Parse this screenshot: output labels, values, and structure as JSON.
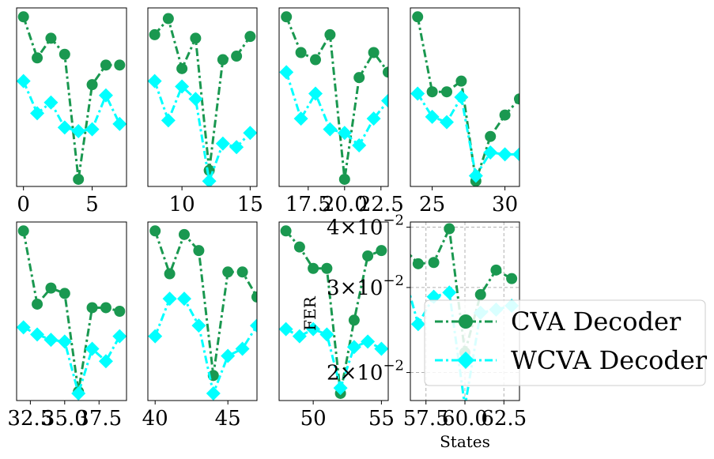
{
  "colors": {
    "cva": "#1a9850",
    "wcva": "#00ffff",
    "grid": "#b0b0b0"
  },
  "legend": {
    "placement": "center-right",
    "entries": [
      "CVA Decoder",
      "WCVA Decoder"
    ]
  },
  "chart_data": [
    {
      "type": "line",
      "xlim": [
        -0.5,
        7.5
      ],
      "ylim": [
        0,
        1
      ],
      "xticks": [
        0,
        5
      ],
      "xtick_labels": [
        "0",
        "5"
      ],
      "x": [
        0,
        1,
        2,
        3,
        4,
        5,
        6,
        7
      ],
      "series": [
        {
          "name": "CVA Decoder",
          "marker": "circle",
          "values": [
            0.95,
            0.72,
            0.83,
            0.74,
            0.04,
            0.57,
            0.68,
            0.68
          ]
        },
        {
          "name": "WCVA Decoder",
          "marker": "diamond",
          "values": [
            0.59,
            0.41,
            0.47,
            0.33,
            0.31,
            0.32,
            0.51,
            0.35
          ]
        }
      ]
    },
    {
      "type": "line",
      "xlim": [
        7.5,
        15.5
      ],
      "ylim": [
        0,
        1
      ],
      "xticks": [
        10,
        15
      ],
      "xtick_labels": [
        "10",
        "15"
      ],
      "x": [
        8,
        9,
        10,
        11,
        12,
        13,
        14,
        15
      ],
      "series": [
        {
          "name": "CVA Decoder",
          "marker": "circle",
          "values": [
            0.85,
            0.94,
            0.66,
            0.83,
            0.09,
            0.71,
            0.73,
            0.84
          ]
        },
        {
          "name": "WCVA Decoder",
          "marker": "diamond",
          "values": [
            0.59,
            0.37,
            0.56,
            0.49,
            0.03,
            0.24,
            0.22,
            0.3
          ]
        }
      ]
    },
    {
      "type": "line",
      "xlim": [
        15.5,
        23.0
      ],
      "ylim": [
        0,
        1
      ],
      "xticks": [
        17.5,
        20.0,
        22.5
      ],
      "xtick_labels": [
        "17.5",
        "20.0",
        "22.5"
      ],
      "x": [
        16,
        17,
        18,
        19,
        20,
        21,
        22,
        23
      ],
      "series": [
        {
          "name": "CVA Decoder",
          "marker": "circle",
          "values": [
            0.95,
            0.75,
            0.71,
            0.85,
            0.04,
            0.61,
            0.75,
            0.64
          ]
        },
        {
          "name": "WCVA Decoder",
          "marker": "diamond",
          "values": [
            0.64,
            0.38,
            0.52,
            0.32,
            0.3,
            0.23,
            0.38,
            0.48
          ]
        }
      ]
    },
    {
      "type": "line",
      "xlim": [
        23.5,
        31.0
      ],
      "ylim": [
        0,
        1
      ],
      "xticks": [
        25,
        30
      ],
      "xtick_labels": [
        "25",
        "30"
      ],
      "x": [
        24,
        25,
        26,
        27,
        28,
        29,
        30,
        31
      ],
      "series": [
        {
          "name": "CVA Decoder",
          "marker": "circle",
          "values": [
            0.95,
            0.53,
            0.53,
            0.59,
            0.03,
            0.28,
            0.4,
            0.49
          ]
        },
        {
          "name": "WCVA Decoder",
          "marker": "diamond",
          "values": [
            0.52,
            0.39,
            0.36,
            0.5,
            0.06,
            0.19,
            0.18,
            0.18
          ]
        }
      ]
    },
    {
      "type": "line",
      "xlim": [
        31.5,
        39.5
      ],
      "ylim": [
        0,
        1
      ],
      "xticks": [
        32.5,
        35.0,
        37.5
      ],
      "xtick_labels": [
        "32.5",
        "35.0",
        "37.5"
      ],
      "x": [
        32,
        33,
        34,
        35,
        36,
        37,
        38,
        39
      ],
      "series": [
        {
          "name": "CVA Decoder",
          "marker": "circle",
          "values": [
            0.95,
            0.54,
            0.63,
            0.6,
            0.05,
            0.52,
            0.52,
            0.5
          ]
        },
        {
          "name": "WCVA Decoder",
          "marker": "diamond",
          "values": [
            0.41,
            0.37,
            0.34,
            0.33,
            0.04,
            0.29,
            0.22,
            0.36
          ]
        }
      ]
    },
    {
      "type": "line",
      "xlim": [
        39.5,
        47.0
      ],
      "ylim": [
        0,
        1
      ],
      "xticks": [
        40,
        45
      ],
      "xtick_labels": [
        "40",
        "45"
      ],
      "x": [
        40,
        41,
        42,
        43,
        44,
        45,
        46,
        47
      ],
      "series": [
        {
          "name": "CVA Decoder",
          "marker": "circle",
          "values": [
            0.95,
            0.71,
            0.93,
            0.84,
            0.14,
            0.72,
            0.72,
            0.58
          ]
        },
        {
          "name": "WCVA Decoder",
          "marker": "diamond",
          "values": [
            0.36,
            0.57,
            0.57,
            0.42,
            0.04,
            0.25,
            0.29,
            0.42
          ]
        }
      ]
    },
    {
      "type": "line",
      "xlim": [
        47.5,
        55.5
      ],
      "ylim": [
        0,
        1
      ],
      "xticks": [
        50,
        55
      ],
      "xtick_labels": [
        "50",
        "55"
      ],
      "x": [
        48,
        49,
        50,
        51,
        52,
        53,
        54,
        55
      ],
      "series": [
        {
          "name": "CVA Decoder",
          "marker": "circle",
          "values": [
            0.95,
            0.86,
            0.74,
            0.74,
            0.04,
            0.45,
            0.81,
            0.84
          ]
        },
        {
          "name": "WCVA Decoder",
          "marker": "diamond",
          "values": [
            0.4,
            0.36,
            0.4,
            0.37,
            0.07,
            0.3,
            0.33,
            0.29
          ]
        }
      ]
    },
    {
      "type": "line",
      "xlim": [
        56.5,
        63.5
      ],
      "ylim": [
        0.0175,
        0.041
      ],
      "yscale": "log",
      "xticks": [
        57.5,
        60.0,
        62.5
      ],
      "xtick_labels": [
        "57.5",
        "60.0",
        "62.5"
      ],
      "yticks": [
        0.02,
        0.03,
        0.04
      ],
      "ytick_labels": [
        [
          "2",
          "×10",
          "−2"
        ],
        [
          "3",
          "×10",
          "−2"
        ],
        [
          "4",
          "×10",
          "−2"
        ]
      ],
      "ylabel": "FER",
      "xlabel": "States",
      "grid": true,
      "x": [
        56,
        57,
        58,
        59,
        60,
        61,
        62,
        63
      ],
      "series": [
        {
          "name": "CVA Decoder",
          "marker": "circle",
          "values": [
            0.0364,
            0.0336,
            0.0338,
            0.0397,
            0.022,
            0.029,
            0.0326,
            0.0313
          ]
        },
        {
          "name": "WCVA Decoder",
          "marker": "diamond",
          "values": [
            0.0328,
            0.0252,
            0.0287,
            0.0293,
            0.017,
            0.0266,
            0.027,
            0.0275
          ]
        }
      ]
    }
  ]
}
